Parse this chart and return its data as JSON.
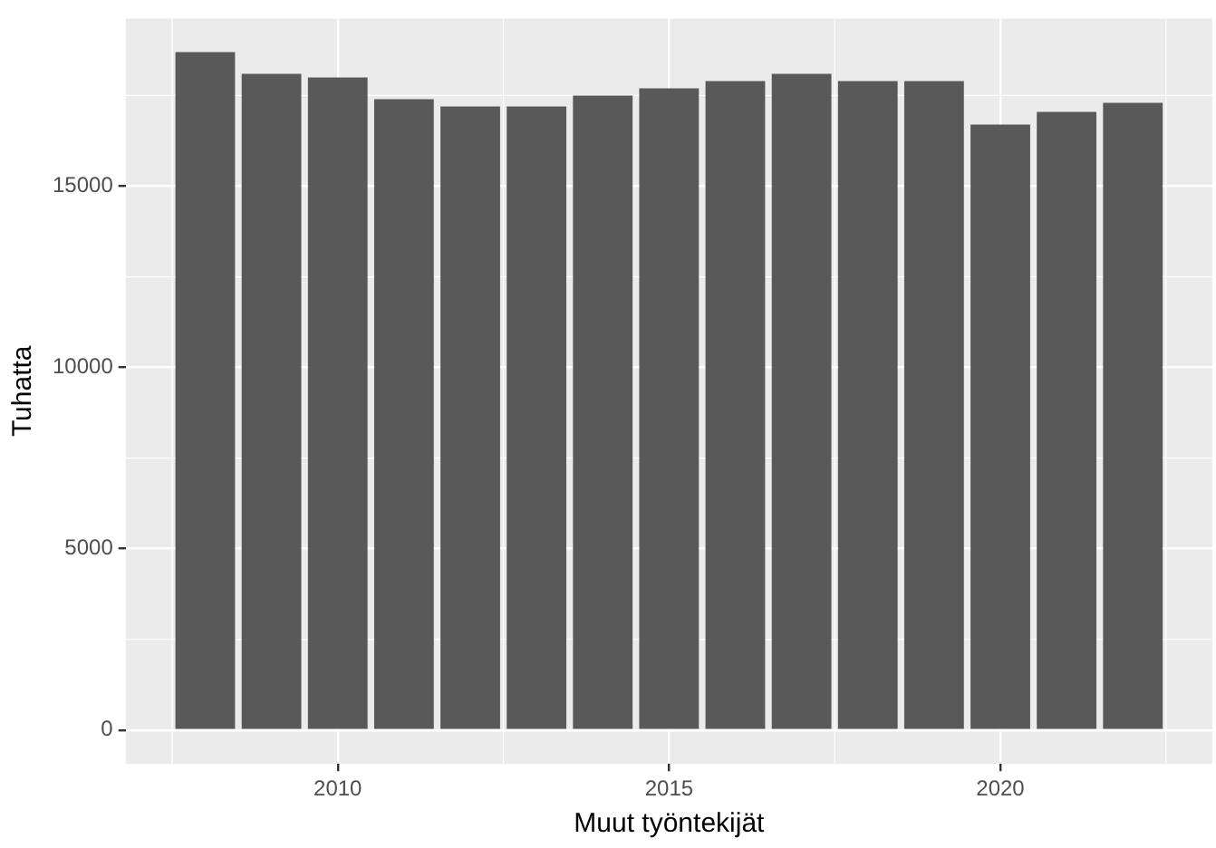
{
  "chart_data": {
    "type": "bar",
    "xlabel": "Muut työntekijät",
    "ylabel": "Tuhatta",
    "x": [
      2008,
      2009,
      2010,
      2011,
      2012,
      2013,
      2014,
      2015,
      2016,
      2017,
      2018,
      2019,
      2020,
      2021,
      2022
    ],
    "values": [
      18700,
      18100,
      18000,
      17400,
      17200,
      17200,
      17500,
      17700,
      17900,
      18100,
      17900,
      17900,
      16700,
      17050,
      17300
    ],
    "color": "#595959",
    "xlim": [
      2006.8,
      2023.2
    ],
    "xticks": [
      2010,
      2015,
      2020
    ],
    "ylim": [
      -935,
      19625
    ],
    "yticks": [
      0,
      5000,
      10000,
      15000
    ],
    "grid": true,
    "legend": false
  }
}
